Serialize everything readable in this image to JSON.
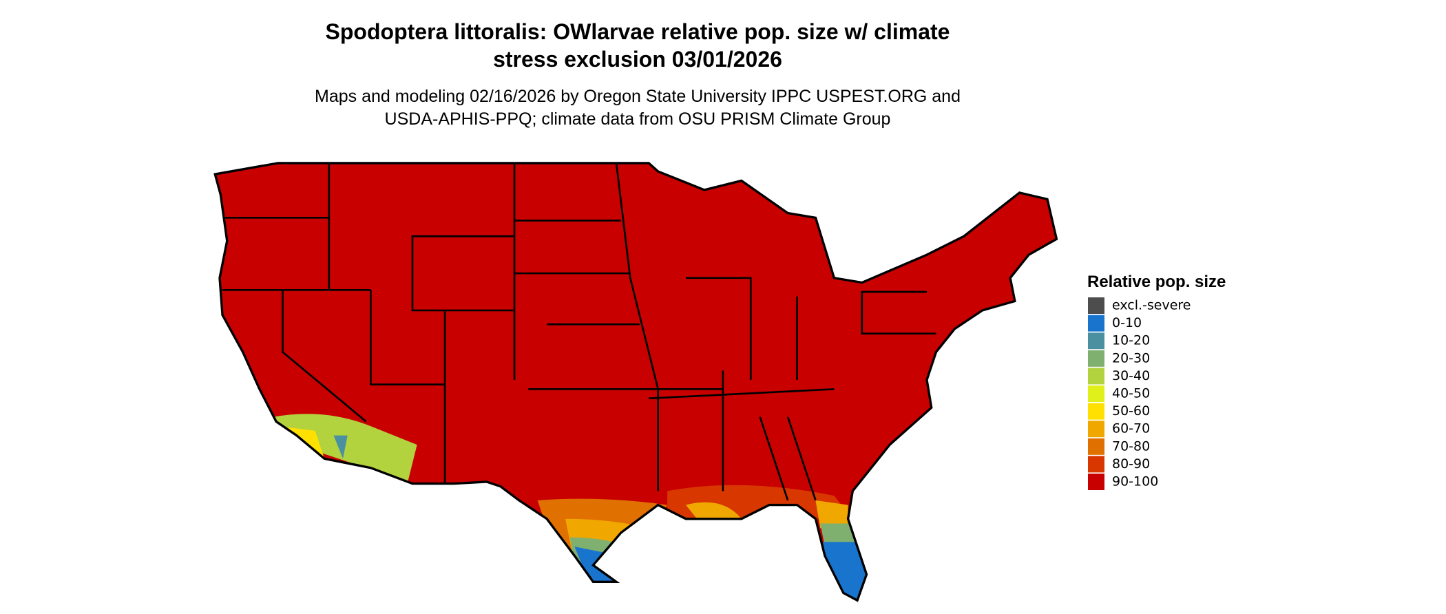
{
  "map": {
    "title": [
      "Spodoptera littoralis: OWlarvae relative pop. size w/ climate",
      "stress exclusion 03/01/2026"
    ],
    "subtitle": [
      "Maps and modeling 02/16/2026 by Oregon State University IPPC USPEST.ORG and",
      "USDA-APHIS-PPQ; climate data from OSU PRISM Climate Group"
    ],
    "legend": {
      "title": "Relative pop. size",
      "items": [
        {
          "label": "excl.-severe",
          "color": "#4d4d4d"
        },
        {
          "label": "0-10",
          "color": "#1874cd"
        },
        {
          "label": "10-20",
          "color": "#4a90a0"
        },
        {
          "label": "20-30",
          "color": "#7fb070"
        },
        {
          "label": "30-40",
          "color": "#b2d23e"
        },
        {
          "label": "40-50",
          "color": "#e0f01a"
        },
        {
          "label": "50-60",
          "color": "#ffe000"
        },
        {
          "label": "60-70",
          "color": "#f0a800"
        },
        {
          "label": "70-80",
          "color": "#e07000"
        },
        {
          "label": "80-90",
          "color": "#d83800"
        },
        {
          "label": "90-100",
          "color": "#c80000"
        }
      ]
    }
  }
}
